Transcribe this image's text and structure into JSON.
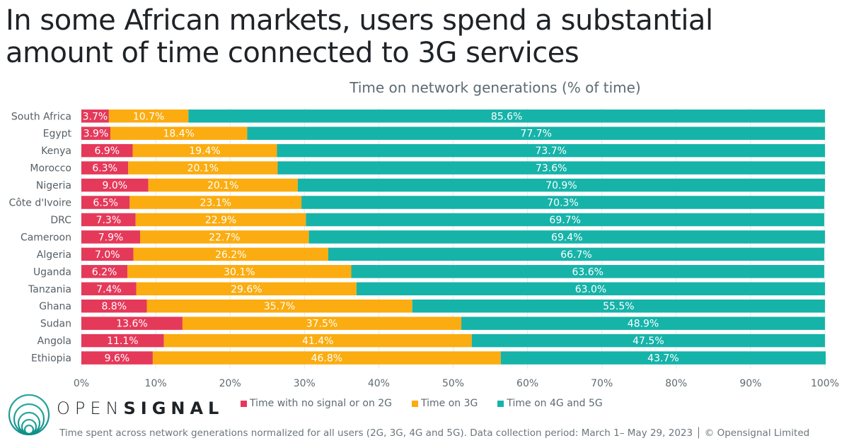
{
  "header": {
    "title_line1": "In some African markets, users spend a substantial",
    "title_line2": "amount of time connected to 3G services",
    "subtitle": "Time on network generations (% of time)"
  },
  "brand": {
    "name_light": "OPEN",
    "name_bold": "SIGNAL",
    "logo_icon": "concentric-circles-logo-icon"
  },
  "footnote": "Time spent across network generations normalized for all users (2G, 3G, 4G and 5G). Data collection period: March 1– May 29, 2023 │ © Opensignal Limited",
  "chart_data": {
    "type": "bar",
    "orientation": "horizontal",
    "stacked": true,
    "title": "In some African markets, users spend a substantial amount of time connected to 3G services",
    "subtitle": "Time on network generations (% of time)",
    "xlabel": "",
    "ylabel": "",
    "xlim": [
      0,
      100
    ],
    "x_ticks": [
      "0%",
      "10%",
      "20%",
      "30%",
      "40%",
      "50%",
      "60%",
      "70%",
      "80%",
      "90%",
      "100%"
    ],
    "grid": true,
    "legend_position": "bottom",
    "categories": [
      "South Africa",
      "Egypt",
      "Kenya",
      "Morocco",
      "Nigeria",
      "Côte d'Ivoire",
      "DRC",
      "Cameroon",
      "Algeria",
      "Uganda",
      "Tanzania",
      "Ghana",
      "Sudan",
      "Angola",
      "Ethiopia"
    ],
    "series": [
      {
        "name": "Time with no signal or on 2G",
        "color": "#E5395A",
        "values": [
          3.7,
          3.9,
          6.9,
          6.3,
          9.0,
          6.5,
          7.3,
          7.9,
          7.0,
          6.2,
          7.4,
          8.8,
          13.6,
          11.1,
          9.6
        ]
      },
      {
        "name": "Time on 3G",
        "color": "#FBAC10",
        "values": [
          10.7,
          18.4,
          19.4,
          20.1,
          20.1,
          23.1,
          22.9,
          22.7,
          26.2,
          30.1,
          29.6,
          35.7,
          37.5,
          41.4,
          46.8
        ]
      },
      {
        "name": "Time on 4G and 5G",
        "color": "#16B3A9",
        "values": [
          85.6,
          77.7,
          73.7,
          73.6,
          70.9,
          70.3,
          69.7,
          69.4,
          66.7,
          63.6,
          63.0,
          55.5,
          48.9,
          47.5,
          43.7
        ]
      }
    ]
  }
}
